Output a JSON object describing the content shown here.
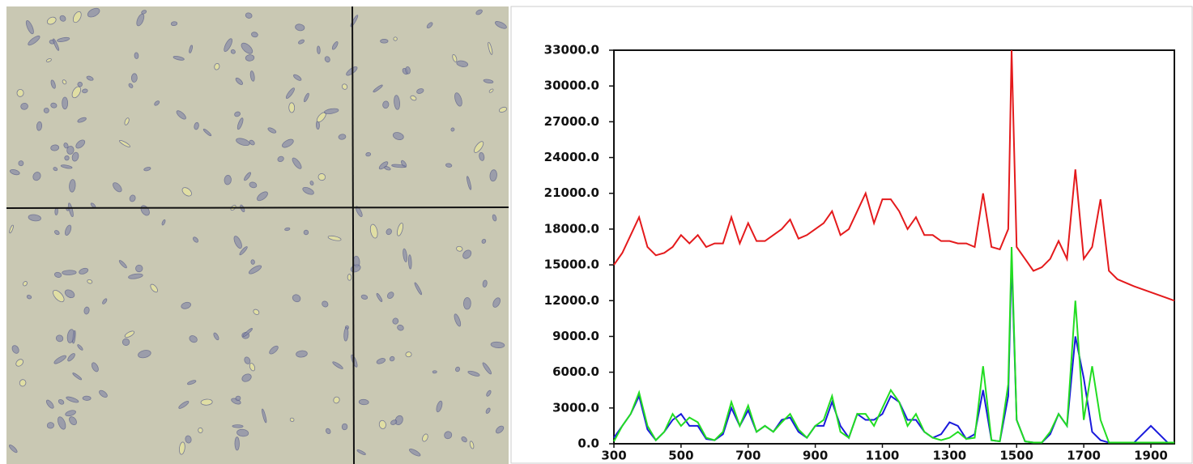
{
  "chart_data": {
    "type": "line",
    "x": [
      300,
      325,
      350,
      375,
      400,
      425,
      450,
      475,
      500,
      525,
      550,
      575,
      600,
      625,
      650,
      675,
      700,
      725,
      750,
      775,
      800,
      825,
      850,
      875,
      900,
      925,
      950,
      975,
      1000,
      1025,
      1050,
      1075,
      1100,
      1125,
      1150,
      1175,
      1200,
      1225,
      1250,
      1275,
      1300,
      1325,
      1350,
      1375,
      1400,
      1425,
      1450,
      1475,
      1485,
      1500,
      1525,
      1550,
      1575,
      1600,
      1625,
      1650,
      1675,
      1700,
      1725,
      1750,
      1775,
      1800,
      1850,
      1900,
      1950,
      1970
    ],
    "series": [
      {
        "color": "#e41a1c",
        "values": [
          15000,
          16000,
          17500,
          19000,
          16500,
          15800,
          16000,
          16500,
          17500,
          16800,
          17500,
          16500,
          16800,
          16800,
          19000,
          16800,
          18500,
          17000,
          17000,
          17500,
          18000,
          18800,
          17200,
          17500,
          18000,
          18500,
          19500,
          17500,
          18000,
          19500,
          21000,
          18500,
          20500,
          20500,
          19500,
          18000,
          19000,
          17500,
          17500,
          17000,
          17000,
          16800,
          16800,
          16500,
          21000,
          16500,
          16300,
          18000,
          33000,
          16500,
          15500,
          14500,
          14800,
          15500,
          17000,
          15500,
          23000,
          15500,
          16500,
          20500,
          14500,
          13800,
          13200,
          12700,
          12200,
          12000
        ]
      },
      {
        "color": "#1a1adc",
        "values": [
          500,
          1500,
          2500,
          4000,
          1200,
          300,
          1000,
          2000,
          2500,
          1500,
          1500,
          400,
          300,
          800,
          3000,
          1500,
          2800,
          1000,
          1500,
          1000,
          2000,
          2200,
          1000,
          500,
          1500,
          1500,
          3500,
          1500,
          500,
          2500,
          2000,
          2000,
          2500,
          4000,
          3500,
          2000,
          2000,
          1000,
          500,
          800,
          1800,
          1500,
          400,
          800,
          4500,
          300,
          200,
          4000,
          15500,
          2000,
          200,
          100,
          100,
          800,
          2500,
          1500,
          9000,
          5500,
          1000,
          300,
          100,
          100,
          100,
          1500,
          100,
          100
        ]
      },
      {
        "color": "#22dd22",
        "values": [
          200,
          1500,
          2500,
          4300,
          1500,
          300,
          1000,
          2500,
          1500,
          2200,
          1800,
          500,
          300,
          1000,
          3500,
          1500,
          3200,
          1000,
          1500,
          1000,
          1800,
          2500,
          1200,
          500,
          1500,
          2000,
          4000,
          1000,
          500,
          2500,
          2500,
          1500,
          3000,
          4500,
          3500,
          1500,
          2500,
          1000,
          500,
          300,
          500,
          1000,
          400,
          500,
          6500,
          300,
          200,
          5000,
          16500,
          2000,
          200,
          100,
          100,
          1000,
          2500,
          1500,
          12000,
          2000,
          6500,
          2000,
          100,
          100,
          100,
          100,
          100,
          100
        ]
      }
    ],
    "xlim": [
      300,
      1970
    ],
    "xticks": [
      300,
      500,
      700,
      900,
      1100,
      1300,
      1500,
      1700,
      1900
    ],
    "ylim": [
      0,
      33000
    ],
    "yticks": [
      {
        "value": 0,
        "label": "0.0"
      },
      {
        "value": 3000,
        "label": "3000.0"
      },
      {
        "value": 6000,
        "label": "6000.0"
      },
      {
        "value": 9000,
        "label": "9000.0"
      },
      {
        "value": 12000,
        "label": "12000.0"
      },
      {
        "value": 15000,
        "label": "15000.0"
      },
      {
        "value": 18000,
        "label": "18000.0"
      },
      {
        "value": 21000,
        "label": "21000.0"
      },
      {
        "value": 24000,
        "label": "24000.0"
      },
      {
        "value": 27000,
        "label": "27000.0"
      },
      {
        "value": 30000,
        "label": "30000.0"
      },
      {
        "value": 33000,
        "label": "33000.0"
      }
    ]
  }
}
